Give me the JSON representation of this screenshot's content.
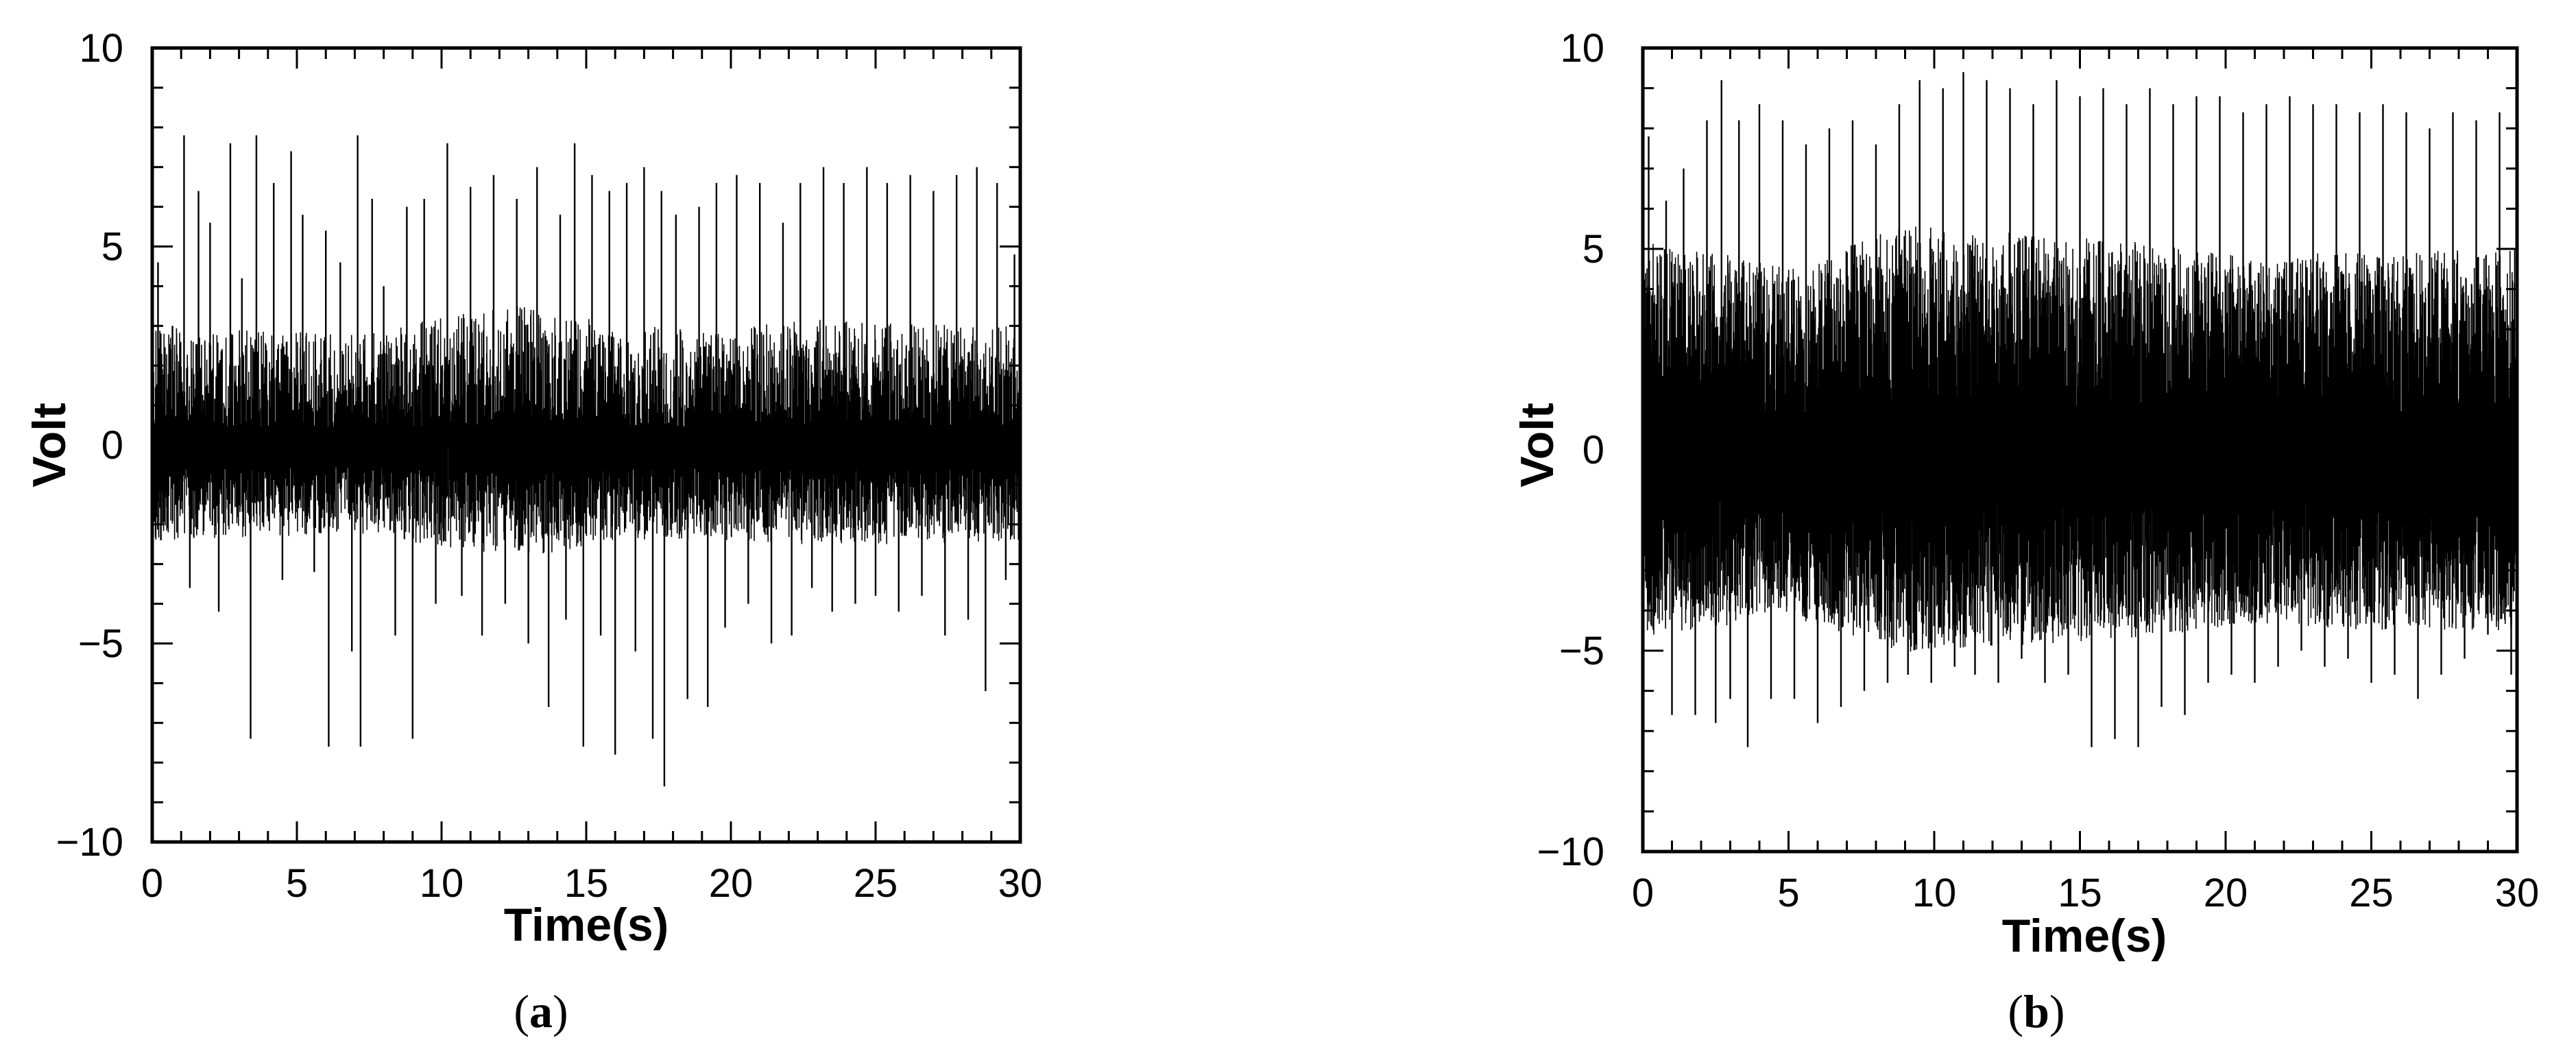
{
  "chart_data": [
    {
      "type": "line",
      "caption_open": "(",
      "caption_letter": "a",
      "caption_close": ")",
      "xlabel": "Time(s)",
      "ylabel": "Volt",
      "xlim": [
        0,
        30
      ],
      "ylim": [
        -10,
        10
      ],
      "xticks": [
        "0",
        "5",
        "10",
        "15",
        "20",
        "25",
        "30"
      ],
      "yticks": [
        "10",
        "5",
        "0",
        "−5",
        "−10"
      ],
      "grid": false,
      "line_color": "#000000",
      "spikes": [
        [
          0.2,
          4.6
        ],
        [
          0.3,
          -2.4
        ],
        [
          0.7,
          3.0
        ],
        [
          1.1,
          7.8
        ],
        [
          1.3,
          -3.6
        ],
        [
          1.6,
          6.4
        ],
        [
          2.0,
          5.6
        ],
        [
          2.3,
          -4.2
        ],
        [
          2.7,
          7.6
        ],
        [
          3.1,
          4.2
        ],
        [
          3.4,
          -7.4
        ],
        [
          3.6,
          7.8
        ],
        [
          4.2,
          6.6
        ],
        [
          4.5,
          -3.4
        ],
        [
          4.8,
          7.4
        ],
        [
          5.2,
          5.8
        ],
        [
          5.6,
          -3.2
        ],
        [
          6.0,
          5.4
        ],
        [
          6.1,
          -7.6
        ],
        [
          6.5,
          4.6
        ],
        [
          6.9,
          -5.2
        ],
        [
          7.1,
          7.8
        ],
        [
          7.2,
          -7.6
        ],
        [
          7.6,
          6.2
        ],
        [
          8.0,
          4.0
        ],
        [
          8.4,
          -4.8
        ],
        [
          8.8,
          6.0
        ],
        [
          9.0,
          -7.4
        ],
        [
          9.4,
          6.2
        ],
        [
          9.8,
          -4.0
        ],
        [
          10.2,
          7.6
        ],
        [
          10.7,
          -3.8
        ],
        [
          11.0,
          6.5
        ],
        [
          11.4,
          -4.8
        ],
        [
          11.8,
          6.8
        ],
        [
          12.2,
          -4.0
        ],
        [
          12.6,
          6.2
        ],
        [
          13.0,
          -5.0
        ],
        [
          13.3,
          7.0
        ],
        [
          13.7,
          -6.6
        ],
        [
          14.1,
          5.8
        ],
        [
          14.3,
          -4.4
        ],
        [
          14.6,
          7.6
        ],
        [
          14.9,
          -7.6
        ],
        [
          15.2,
          6.8
        ],
        [
          15.5,
          -4.8
        ],
        [
          15.8,
          6.4
        ],
        [
          16.0,
          -7.8
        ],
        [
          16.4,
          6.6
        ],
        [
          16.7,
          -5.2
        ],
        [
          17.0,
          7.0
        ],
        [
          17.3,
          -7.4
        ],
        [
          17.6,
          6.4
        ],
        [
          17.7,
          -8.6
        ],
        [
          18.1,
          5.8
        ],
        [
          18.5,
          -6.4
        ],
        [
          18.9,
          6.0
        ],
        [
          19.2,
          -6.6
        ],
        [
          19.5,
          6.6
        ],
        [
          19.8,
          -4.6
        ],
        [
          20.2,
          6.8
        ],
        [
          20.6,
          -4.0
        ],
        [
          21.0,
          6.6
        ],
        [
          21.4,
          -5.0
        ],
        [
          21.8,
          5.6
        ],
        [
          22.1,
          -4.8
        ],
        [
          22.4,
          6.6
        ],
        [
          22.8,
          -3.6
        ],
        [
          23.2,
          7.0
        ],
        [
          23.5,
          -4.2
        ],
        [
          23.9,
          6.6
        ],
        [
          24.3,
          -4.0
        ],
        [
          24.7,
          7.0
        ],
        [
          25.0,
          -3.8
        ],
        [
          25.4,
          6.6
        ],
        [
          25.8,
          -4.2
        ],
        [
          26.2,
          6.8
        ],
        [
          26.6,
          -3.8
        ],
        [
          27.0,
          6.4
        ],
        [
          27.4,
          -4.8
        ],
        [
          27.8,
          6.8
        ],
        [
          28.2,
          -4.4
        ],
        [
          28.5,
          7.0
        ],
        [
          28.8,
          -6.2
        ],
        [
          29.2,
          6.6
        ],
        [
          29.5,
          -3.4
        ],
        [
          29.8,
          4.8
        ]
      ],
      "body_band": [
        [
          0,
          3.0
        ],
        [
          7,
          2.8
        ],
        [
          13,
          3.6
        ],
        [
          16,
          3.0
        ],
        [
          20,
          3.0
        ],
        [
          24,
          3.2
        ],
        [
          30,
          3.0
        ]
      ]
    },
    {
      "type": "line",
      "caption_open": "(",
      "caption_letter": "b",
      "caption_close": ")",
      "xlabel": "Time(s)",
      "ylabel": "Volt",
      "xlim": [
        0,
        30
      ],
      "ylim": [
        -10,
        10
      ],
      "xticks": [
        "0",
        "5",
        "10",
        "15",
        "20",
        "25",
        "30"
      ],
      "yticks": [
        "10",
        "5",
        "0",
        "−5",
        "−10"
      ],
      "grid": false,
      "line_color": "#000000",
      "spikes": [
        [
          0.2,
          7.8
        ],
        [
          0.4,
          -3.2
        ],
        [
          0.8,
          6.2
        ],
        [
          1.0,
          -6.6
        ],
        [
          1.4,
          7.0
        ],
        [
          1.8,
          -6.6
        ],
        [
          2.2,
          8.2
        ],
        [
          2.5,
          -6.8
        ],
        [
          2.7,
          9.2
        ],
        [
          3.0,
          -6.2
        ],
        [
          3.3,
          8.2
        ],
        [
          3.6,
          -7.4
        ],
        [
          4.0,
          8.6
        ],
        [
          4.4,
          -6.2
        ],
        [
          4.8,
          8.2
        ],
        [
          5.2,
          -6.2
        ],
        [
          5.6,
          7.6
        ],
        [
          6.0,
          -6.8
        ],
        [
          6.4,
          8.0
        ],
        [
          6.8,
          -6.4
        ],
        [
          7.2,
          8.2
        ],
        [
          7.6,
          -6.0
        ],
        [
          8.0,
          7.6
        ],
        [
          8.4,
          -5.8
        ],
        [
          8.8,
          8.6
        ],
        [
          9.1,
          -5.6
        ],
        [
          9.5,
          9.2
        ],
        [
          9.9,
          -5.8
        ],
        [
          10.3,
          9.0
        ],
        [
          10.7,
          -5.4
        ],
        [
          11.0,
          9.4
        ],
        [
          11.4,
          -5.6
        ],
        [
          11.8,
          9.2
        ],
        [
          12.2,
          -5.8
        ],
        [
          12.6,
          9.0
        ],
        [
          13.0,
          -5.2
        ],
        [
          13.4,
          8.6
        ],
        [
          13.8,
          -5.8
        ],
        [
          14.2,
          9.2
        ],
        [
          14.6,
          -5.6
        ],
        [
          15.0,
          8.8
        ],
        [
          15.4,
          -7.4
        ],
        [
          15.8,
          9.0
        ],
        [
          16.2,
          -7.2
        ],
        [
          16.6,
          8.6
        ],
        [
          17.0,
          -7.4
        ],
        [
          17.4,
          9.0
        ],
        [
          17.8,
          -6.4
        ],
        [
          18.2,
          8.6
        ],
        [
          18.6,
          -6.6
        ],
        [
          19.0,
          8.8
        ],
        [
          19.4,
          -5.8
        ],
        [
          19.8,
          8.8
        ],
        [
          20.2,
          -5.6
        ],
        [
          20.6,
          8.4
        ],
        [
          21.0,
          -5.8
        ],
        [
          21.4,
          8.6
        ],
        [
          21.8,
          -5.4
        ],
        [
          22.2,
          8.8
        ],
        [
          22.6,
          -5.0
        ],
        [
          23.0,
          8.6
        ],
        [
          23.4,
          -5.4
        ],
        [
          23.8,
          8.6
        ],
        [
          24.2,
          -5.2
        ],
        [
          24.6,
          8.4
        ],
        [
          25.0,
          -5.8
        ],
        [
          25.4,
          8.6
        ],
        [
          25.8,
          -5.6
        ],
        [
          26.2,
          8.4
        ],
        [
          26.6,
          -6.2
        ],
        [
          27.0,
          8.0
        ],
        [
          27.4,
          -5.6
        ],
        [
          27.8,
          8.4
        ],
        [
          28.2,
          -5.2
        ],
        [
          28.6,
          8.2
        ],
        [
          29.0,
          -4.6
        ],
        [
          29.4,
          8.4
        ],
        [
          29.8,
          -5.6
        ]
      ],
      "body_band": [
        [
          0,
          5.2
        ],
        [
          5,
          4.6
        ],
        [
          9,
          5.6
        ],
        [
          13,
          5.4
        ],
        [
          17,
          5.2
        ],
        [
          21,
          4.8
        ],
        [
          25,
          5.0
        ],
        [
          30,
          5.0
        ]
      ]
    }
  ]
}
